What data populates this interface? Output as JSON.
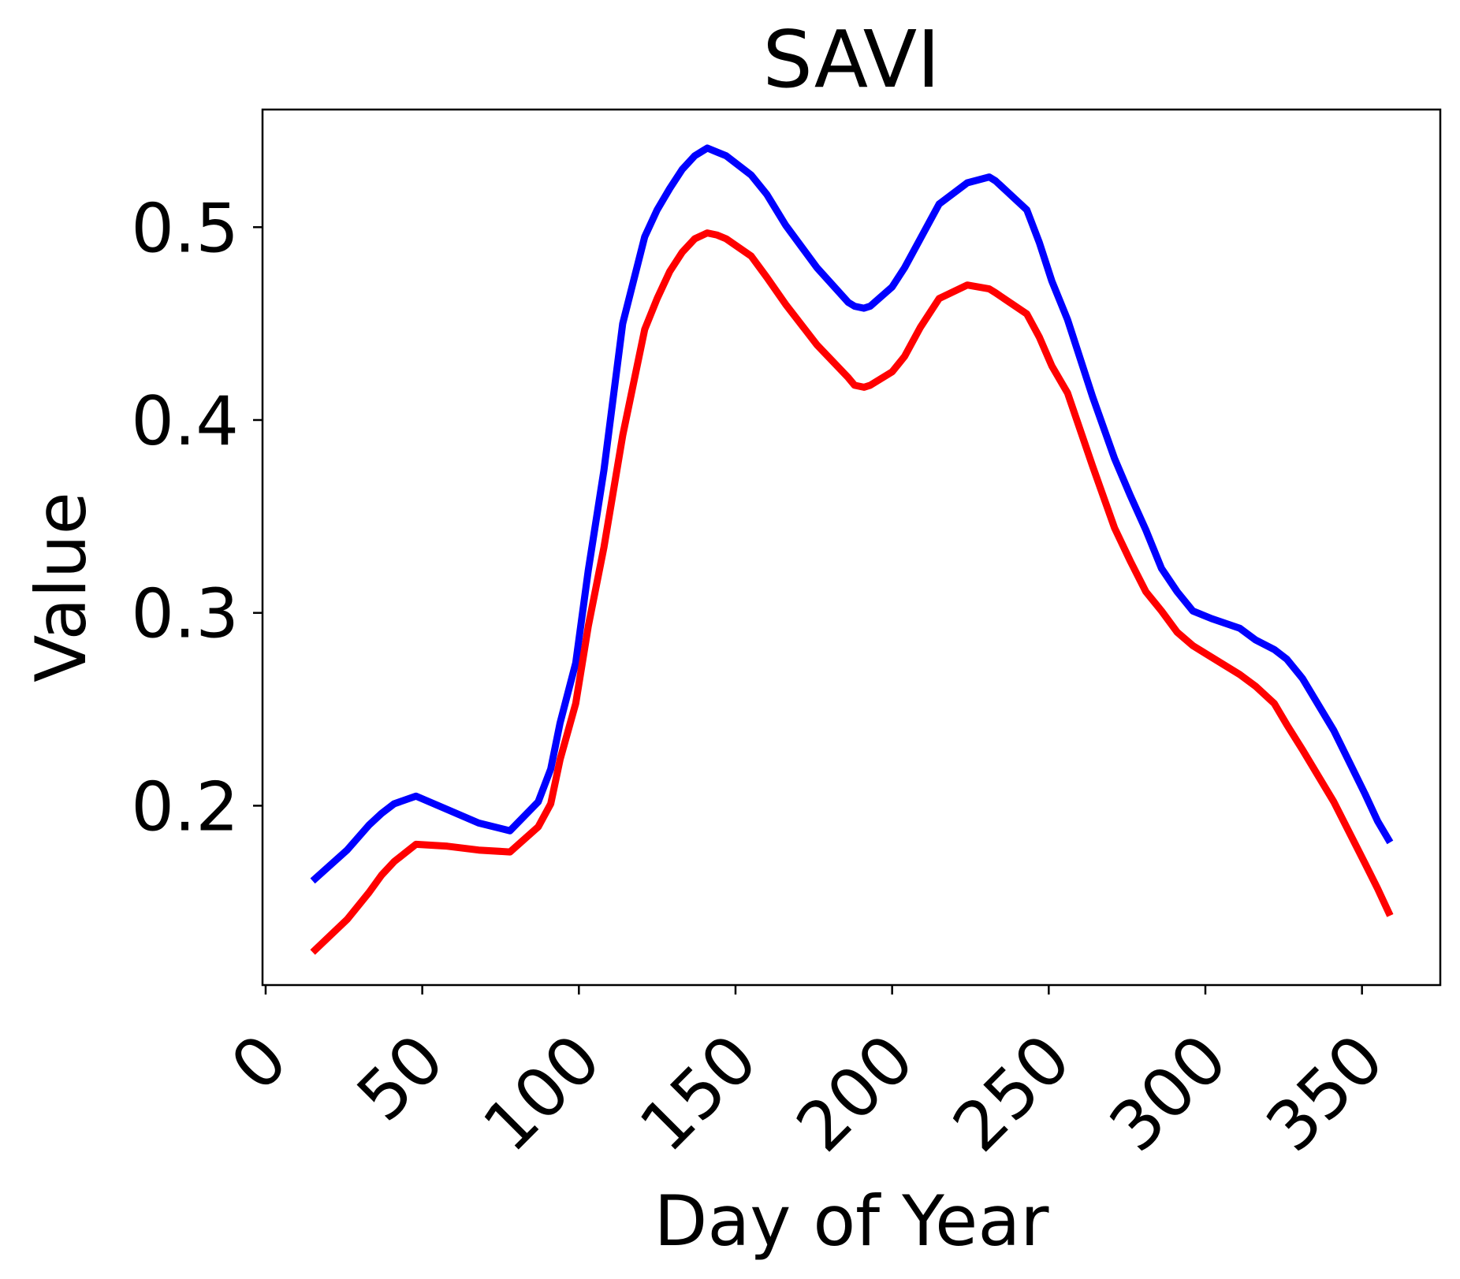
{
  "chart_data": {
    "type": "line",
    "title": "SAVI",
    "xlabel": "Day of Year",
    "ylabel": "Value",
    "xlim": [
      -1,
      375
    ],
    "ylim": [
      0.107,
      0.561
    ],
    "xticks": [
      0,
      50,
      100,
      150,
      200,
      250,
      300,
      350
    ],
    "xtick_labels": [
      "0",
      "50",
      "100",
      "150",
      "200",
      "250",
      "300",
      "350"
    ],
    "yticks": [
      0.2,
      0.3,
      0.4,
      0.5
    ],
    "ytick_labels": [
      "0.2",
      "0.3",
      "0.4",
      "0.5"
    ],
    "xtick_rotation": 45,
    "grid": false,
    "legend": false,
    "series": [
      {
        "color": "#0000ff",
        "x": [
          15,
          26,
          33,
          37,
          41,
          48,
          58,
          68,
          78,
          87,
          91,
          94,
          99,
          103,
          108,
          114,
          121,
          125,
          129,
          133,
          137,
          141,
          144,
          147,
          155,
          160,
          166,
          176,
          186,
          188,
          191,
          193,
          200,
          204,
          209,
          215,
          224,
          231,
          233,
          243,
          247,
          251,
          256,
          264,
          271,
          276,
          281,
          286,
          291,
          296,
          302,
          311,
          316,
          322,
          326,
          331,
          341,
          351,
          355,
          359
        ],
        "y": [
          0.161,
          0.177,
          0.19,
          0.196,
          0.201,
          0.205,
          0.198,
          0.191,
          0.187,
          0.202,
          0.219,
          0.243,
          0.274,
          0.322,
          0.374,
          0.45,
          0.495,
          0.509,
          0.52,
          0.53,
          0.537,
          0.541,
          0.539,
          0.537,
          0.527,
          0.517,
          0.501,
          0.479,
          0.461,
          0.459,
          0.458,
          0.459,
          0.469,
          0.479,
          0.494,
          0.512,
          0.523,
          0.526,
          0.524,
          0.509,
          0.492,
          0.472,
          0.452,
          0.412,
          0.38,
          0.361,
          0.343,
          0.323,
          0.311,
          0.301,
          0.297,
          0.292,
          0.286,
          0.281,
          0.276,
          0.266,
          0.239,
          0.206,
          0.192,
          0.181
        ]
      },
      {
        "color": "#ff0000",
        "x": [
          15,
          26,
          33,
          37,
          41,
          48,
          58,
          68,
          78,
          87,
          91,
          94,
          99,
          103,
          108,
          114,
          121,
          125,
          129,
          133,
          137,
          141,
          144,
          147,
          155,
          160,
          166,
          176,
          186,
          188,
          191,
          193,
          200,
          204,
          209,
          215,
          224,
          231,
          233,
          243,
          247,
          251,
          256,
          264,
          271,
          276,
          281,
          286,
          291,
          296,
          302,
          311,
          316,
          322,
          326,
          331,
          341,
          351,
          355,
          359
        ],
        "y": [
          0.124,
          0.141,
          0.155,
          0.164,
          0.171,
          0.18,
          0.179,
          0.177,
          0.176,
          0.189,
          0.201,
          0.224,
          0.253,
          0.293,
          0.334,
          0.392,
          0.447,
          0.463,
          0.477,
          0.487,
          0.494,
          0.497,
          0.496,
          0.494,
          0.485,
          0.474,
          0.46,
          0.439,
          0.422,
          0.418,
          0.417,
          0.418,
          0.425,
          0.433,
          0.448,
          0.463,
          0.47,
          0.468,
          0.466,
          0.455,
          0.443,
          0.428,
          0.414,
          0.376,
          0.344,
          0.327,
          0.311,
          0.301,
          0.29,
          0.283,
          0.277,
          0.268,
          0.262,
          0.253,
          0.242,
          0.229,
          0.202,
          0.17,
          0.157,
          0.143
        ]
      }
    ]
  }
}
